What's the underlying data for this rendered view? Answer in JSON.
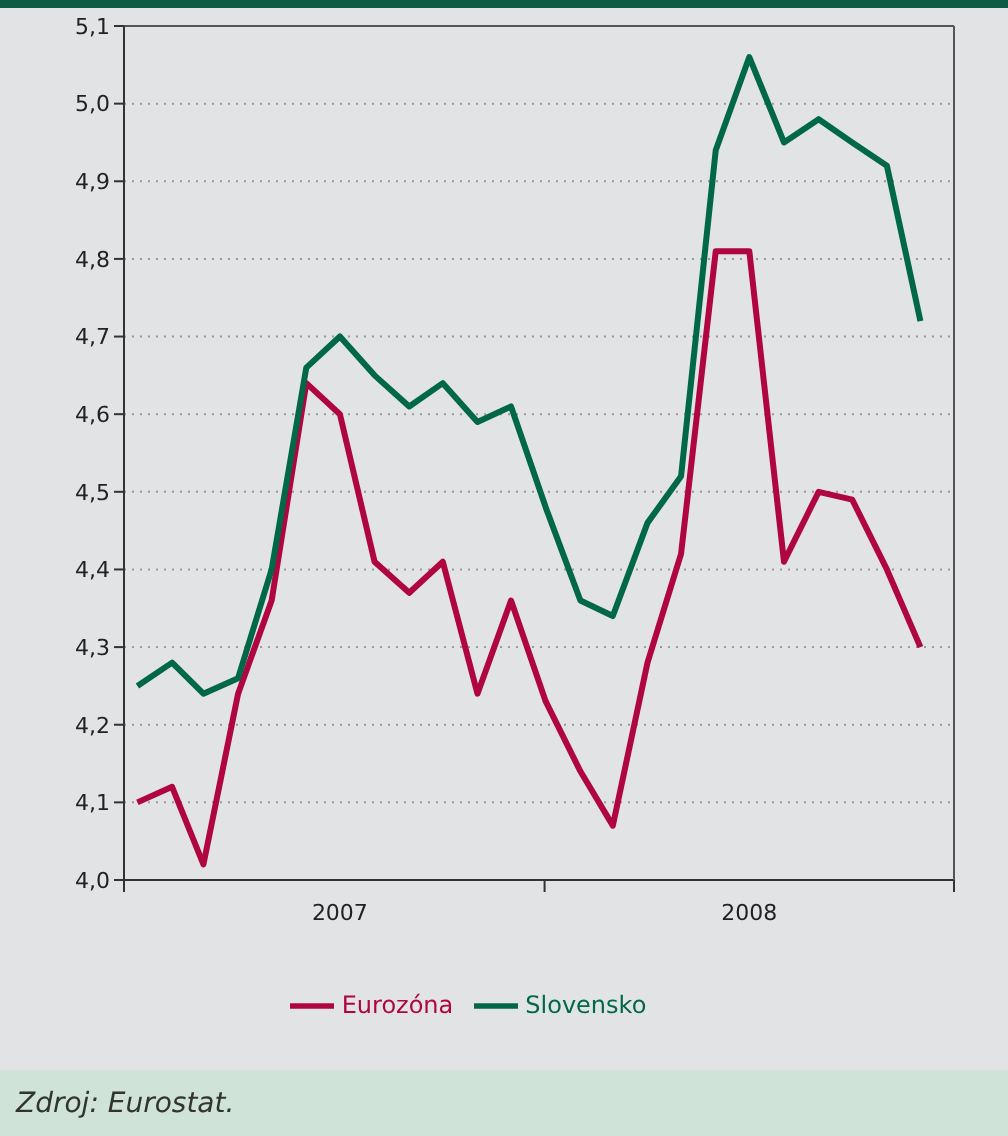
{
  "chart_data": {
    "type": "line",
    "x": [
      "2007-01",
      "2007-02",
      "2007-03",
      "2007-04",
      "2007-05",
      "2007-06",
      "2007-07",
      "2007-08",
      "2007-09",
      "2007-10",
      "2007-11",
      "2007-12",
      "2008-01",
      "2008-02",
      "2008-03",
      "2008-04",
      "2008-05",
      "2008-06",
      "2008-07",
      "2008-08",
      "2008-09",
      "2008-10",
      "2008-11",
      "2008-12"
    ],
    "series": [
      {
        "name": "Eurozóna",
        "color": "#b0063f",
        "values": [
          4.1,
          4.12,
          4.02,
          4.24,
          4.36,
          4.64,
          4.6,
          4.41,
          4.37,
          4.41,
          4.24,
          4.36,
          4.23,
          4.14,
          4.07,
          4.28,
          4.42,
          4.81,
          4.81,
          4.41,
          4.5,
          4.49,
          4.4,
          4.3
        ]
      },
      {
        "name": "Slovensko",
        "color": "#006847",
        "values": [
          4.25,
          4.28,
          4.24,
          4.26,
          4.4,
          4.66,
          4.7,
          4.65,
          4.61,
          4.64,
          4.59,
          4.61,
          4.48,
          4.36,
          4.34,
          4.46,
          4.52,
          4.94,
          5.06,
          4.95,
          4.98,
          4.95,
          4.92,
          4.72
        ]
      }
    ],
    "xlim": [
      "2006-12-20",
      "2008-12-31"
    ],
    "xticks": [
      {
        "value": "2006-12-20",
        "label": null
      },
      {
        "value": "2007-07-01",
        "label": "2007"
      },
      {
        "value": "2007-12-31",
        "label": null
      },
      {
        "value": "2008-07-01",
        "label": "2008"
      },
      {
        "value": "2008-12-31",
        "label": null
      }
    ],
    "ylim": [
      4.0,
      5.1
    ],
    "yticks": [
      {
        "value": 4.0,
        "label": "4,0"
      },
      {
        "value": 4.1,
        "label": "4,1"
      },
      {
        "value": 4.2,
        "label": "4,2"
      },
      {
        "value": 4.3,
        "label": "4,3"
      },
      {
        "value": 4.4,
        "label": "4,4"
      },
      {
        "value": 4.5,
        "label": "4,5"
      },
      {
        "value": 4.6,
        "label": "4,6"
      },
      {
        "value": 4.7,
        "label": "4,7"
      },
      {
        "value": 4.8,
        "label": "4,8"
      },
      {
        "value": 4.9,
        "label": "4,9"
      },
      {
        "value": 5.0,
        "label": "5,0"
      },
      {
        "value": 5.1,
        "label": "5,1"
      }
    ],
    "grid": "y",
    "legend": "bottom",
    "marker": "none",
    "line_style": "solid",
    "annotations": [
      "Zdroj: Eurostat."
    ]
  }
}
